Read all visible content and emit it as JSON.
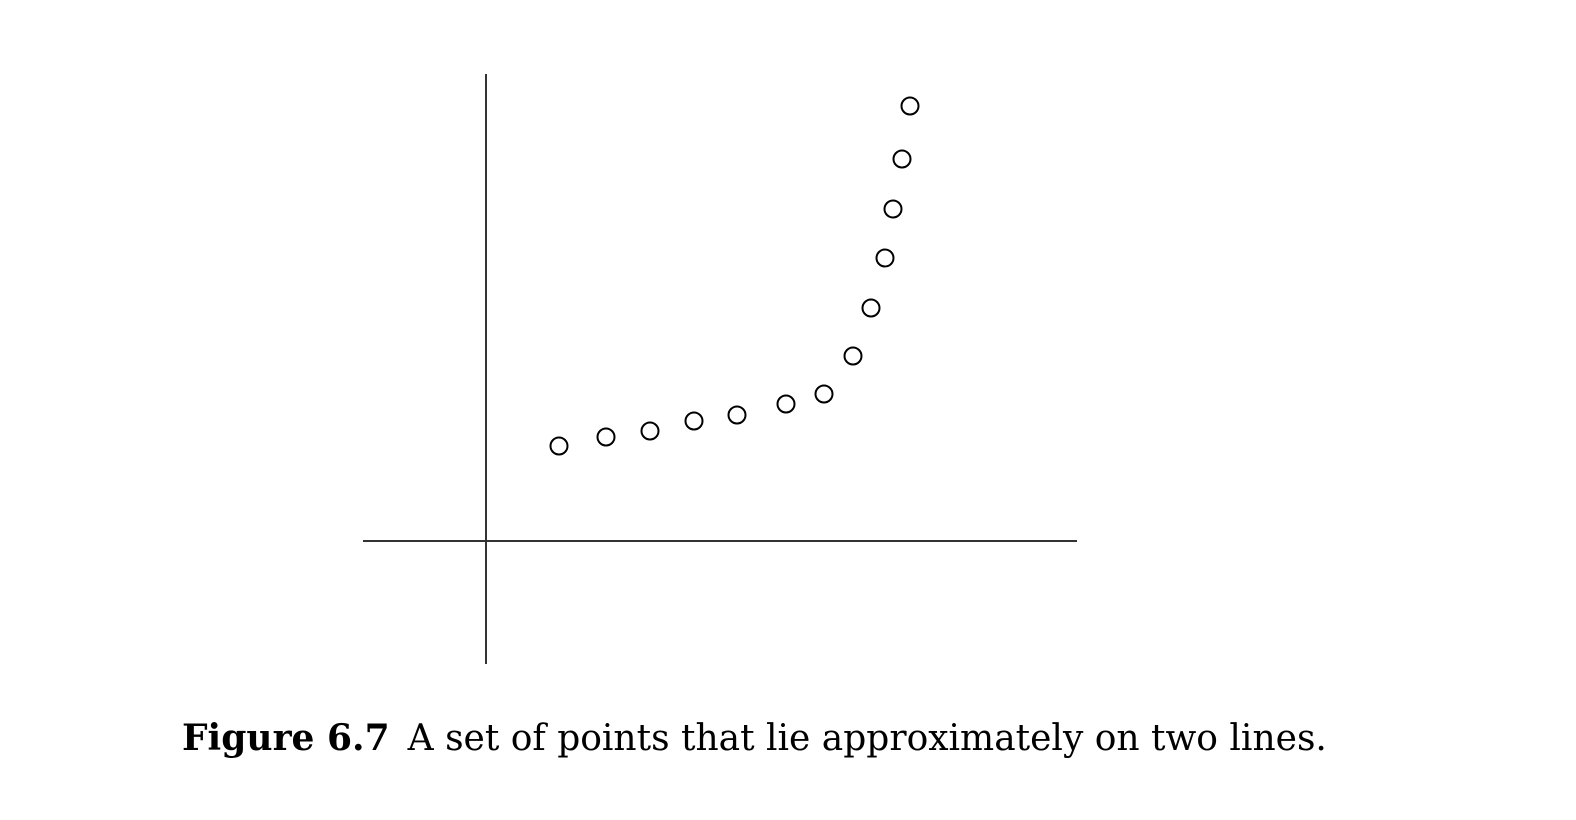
{
  "chart_data": {
    "type": "scatter",
    "x": [
      0.73,
      1.2,
      1.64,
      2.08,
      2.51,
      3.0,
      3.38,
      3.67,
      3.85,
      3.99,
      4.07,
      4.16,
      4.24
    ],
    "values": [
      0.95,
      1.04,
      1.1,
      1.2,
      1.26,
      1.37,
      1.47,
      1.85,
      2.33,
      2.83,
      3.32,
      3.82,
      4.35
    ],
    "xlim": [
      -1.23,
      5.91
    ],
    "ylim": [
      -1.23,
      4.67
    ],
    "color": "#000000"
  },
  "caption": {
    "label": "Figure 6.7",
    "text": "A set of points that lie approximately on two lines."
  }
}
